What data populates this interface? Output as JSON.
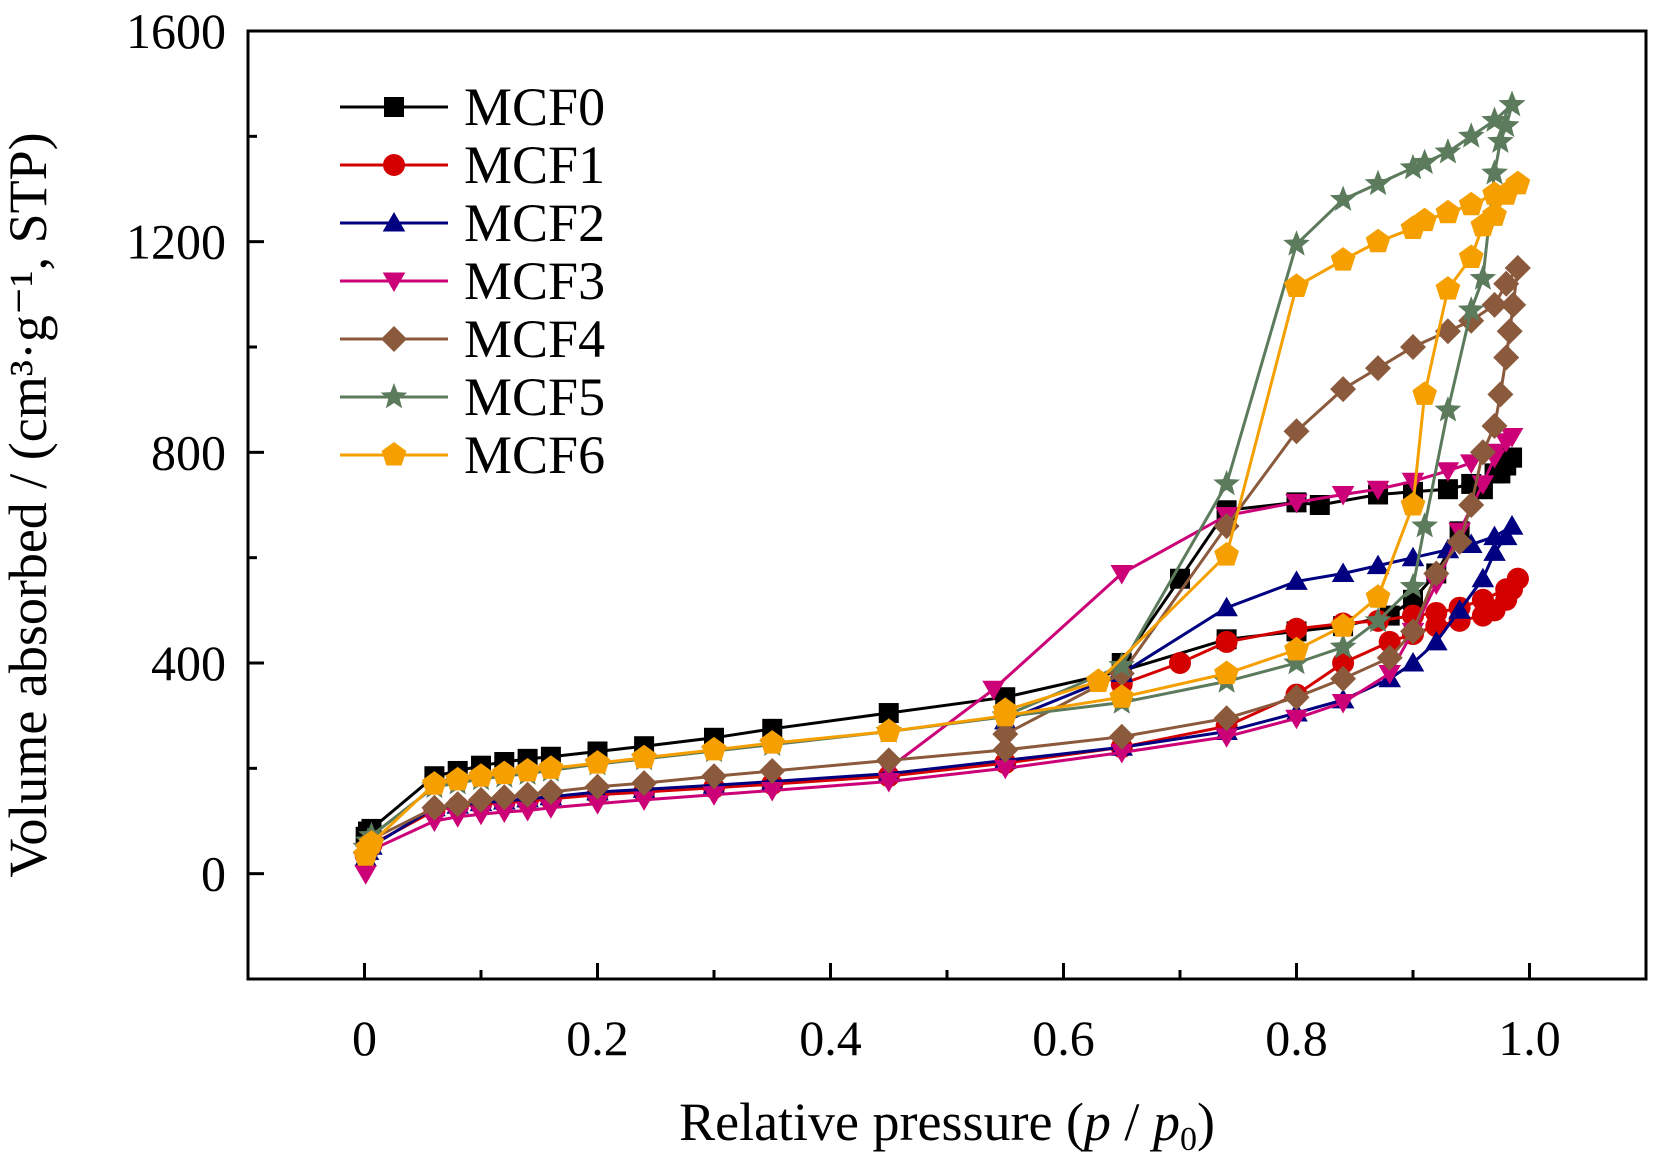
{
  "chart_data": {
    "type": "line",
    "ylabel": "Volume absorbed / (cm³·g⁻¹, STP)",
    "xlim": [
      -0.1,
      1.1
    ],
    "ylim": [
      -200,
      1600
    ],
    "xticks": [
      0,
      0.2,
      0.4,
      0.6,
      0.8,
      1.0
    ],
    "xtick_labels": [
      "0",
      "0.2",
      "0.4",
      "0.6",
      "0.8",
      "1.0"
    ],
    "yticks": [
      0,
      400,
      800,
      1200,
      1600
    ],
    "ytick_labels": [
      "0",
      "400",
      "800",
      "1200",
      "1600"
    ],
    "grid": false,
    "legend_position": "top-left",
    "xlabel_parts": {
      "text1": "Relative pressure (",
      "p": "p",
      "slash": " / ",
      "p0": "p",
      "sub0": "0",
      "close": ")"
    },
    "series": [
      {
        "name": "MCF0",
        "color": "#000000",
        "marker": "square",
        "adsorption": [
          [
            0.001,
            70
          ],
          [
            0.003,
            80
          ],
          [
            0.006,
            85
          ],
          [
            0.06,
            185
          ],
          [
            0.08,
            195
          ],
          [
            0.1,
            205
          ],
          [
            0.12,
            212
          ],
          [
            0.14,
            218
          ],
          [
            0.16,
            222
          ],
          [
            0.2,
            232
          ],
          [
            0.24,
            242
          ],
          [
            0.3,
            258
          ],
          [
            0.35,
            275
          ],
          [
            0.45,
            305
          ],
          [
            0.55,
            335
          ],
          [
            0.65,
            385
          ],
          [
            0.74,
            445
          ],
          [
            0.8,
            460
          ],
          [
            0.84,
            470
          ],
          [
            0.88,
            490
          ],
          [
            0.9,
            520
          ],
          [
            0.92,
            570
          ],
          [
            0.94,
            650
          ],
          [
            0.96,
            730
          ],
          [
            0.975,
            760
          ],
          [
            0.98,
            775
          ],
          [
            0.985,
            790
          ]
        ],
        "desorption": [
          [
            0.985,
            790
          ],
          [
            0.97,
            760
          ],
          [
            0.95,
            740
          ],
          [
            0.93,
            730
          ],
          [
            0.9,
            725
          ],
          [
            0.87,
            720
          ],
          [
            0.82,
            700
          ],
          [
            0.8,
            705
          ],
          [
            0.74,
            690
          ],
          [
            0.7,
            560
          ],
          [
            0.65,
            400
          ]
        ]
      },
      {
        "name": "MCF1",
        "color": "#d40000",
        "marker": "circle",
        "adsorption": [
          [
            0.001,
            35
          ],
          [
            0.003,
            45
          ],
          [
            0.006,
            55
          ],
          [
            0.06,
            120
          ],
          [
            0.08,
            128
          ],
          [
            0.1,
            132
          ],
          [
            0.12,
            135
          ],
          [
            0.14,
            138
          ],
          [
            0.16,
            142
          ],
          [
            0.2,
            150
          ],
          [
            0.24,
            155
          ],
          [
            0.3,
            163
          ],
          [
            0.35,
            170
          ],
          [
            0.45,
            185
          ],
          [
            0.55,
            210
          ],
          [
            0.65,
            240
          ],
          [
            0.74,
            280
          ],
          [
            0.8,
            340
          ],
          [
            0.84,
            400
          ],
          [
            0.88,
            440
          ],
          [
            0.9,
            455
          ],
          [
            0.92,
            470
          ],
          [
            0.94,
            480
          ],
          [
            0.96,
            490
          ],
          [
            0.97,
            500
          ],
          [
            0.98,
            520
          ],
          [
            0.985,
            540
          ],
          [
            0.99,
            560
          ]
        ],
        "desorption": [
          [
            0.99,
            560
          ],
          [
            0.98,
            540
          ],
          [
            0.96,
            520
          ],
          [
            0.94,
            505
          ],
          [
            0.92,
            495
          ],
          [
            0.9,
            490
          ],
          [
            0.87,
            480
          ],
          [
            0.84,
            475
          ],
          [
            0.8,
            465
          ],
          [
            0.74,
            440
          ],
          [
            0.7,
            400
          ],
          [
            0.65,
            360
          ]
        ]
      },
      {
        "name": "MCF2",
        "color": "#000080",
        "marker": "triangle-up",
        "adsorption": [
          [
            0.001,
            30
          ],
          [
            0.003,
            42
          ],
          [
            0.006,
            52
          ],
          [
            0.06,
            125
          ],
          [
            0.08,
            130
          ],
          [
            0.1,
            135
          ],
          [
            0.12,
            138
          ],
          [
            0.14,
            142
          ],
          [
            0.16,
            146
          ],
          [
            0.2,
            155
          ],
          [
            0.24,
            160
          ],
          [
            0.3,
            168
          ],
          [
            0.35,
            175
          ],
          [
            0.45,
            190
          ],
          [
            0.55,
            215
          ],
          [
            0.65,
            240
          ],
          [
            0.74,
            270
          ],
          [
            0.8,
            305
          ],
          [
            0.84,
            330
          ],
          [
            0.88,
            370
          ],
          [
            0.9,
            400
          ],
          [
            0.92,
            440
          ],
          [
            0.94,
            500
          ],
          [
            0.96,
            560
          ],
          [
            0.97,
            610
          ],
          [
            0.98,
            640
          ],
          [
            0.985,
            660
          ]
        ],
        "desorption": [
          [
            0.985,
            660
          ],
          [
            0.97,
            640
          ],
          [
            0.95,
            625
          ],
          [
            0.93,
            615
          ],
          [
            0.9,
            600
          ],
          [
            0.87,
            585
          ],
          [
            0.84,
            570
          ],
          [
            0.8,
            555
          ],
          [
            0.74,
            505
          ],
          [
            0.65,
            380
          ],
          [
            0.55,
            290
          ]
        ]
      },
      {
        "name": "MCF3",
        "color": "#cc0077",
        "marker": "triangle-down",
        "adsorption": [
          [
            0.001,
            0
          ],
          [
            0.003,
            30
          ],
          [
            0.006,
            45
          ],
          [
            0.06,
            100
          ],
          [
            0.08,
            108
          ],
          [
            0.1,
            113
          ],
          [
            0.12,
            117
          ],
          [
            0.14,
            120
          ],
          [
            0.16,
            125
          ],
          [
            0.2,
            133
          ],
          [
            0.24,
            140
          ],
          [
            0.3,
            150
          ],
          [
            0.35,
            158
          ],
          [
            0.45,
            175
          ],
          [
            0.55,
            200
          ],
          [
            0.65,
            230
          ],
          [
            0.74,
            260
          ],
          [
            0.8,
            295
          ],
          [
            0.84,
            325
          ],
          [
            0.88,
            380
          ],
          [
            0.9,
            460
          ],
          [
            0.92,
            550
          ],
          [
            0.94,
            650
          ],
          [
            0.96,
            740
          ],
          [
            0.97,
            790
          ],
          [
            0.98,
            820
          ],
          [
            0.985,
            830
          ]
        ],
        "desorption": [
          [
            0.985,
            830
          ],
          [
            0.97,
            800
          ],
          [
            0.95,
            780
          ],
          [
            0.93,
            765
          ],
          [
            0.9,
            745
          ],
          [
            0.87,
            730
          ],
          [
            0.84,
            720
          ],
          [
            0.8,
            705
          ],
          [
            0.74,
            680
          ],
          [
            0.65,
            570
          ],
          [
            0.54,
            350
          ],
          [
            0.45,
            200
          ]
        ]
      },
      {
        "name": "MCF4",
        "color": "#8b5a3c",
        "marker": "diamond",
        "adsorption": [
          [
            0.001,
            40
          ],
          [
            0.003,
            55
          ],
          [
            0.006,
            65
          ],
          [
            0.06,
            125
          ],
          [
            0.08,
            132
          ],
          [
            0.1,
            140
          ],
          [
            0.12,
            145
          ],
          [
            0.14,
            150
          ],
          [
            0.16,
            155
          ],
          [
            0.2,
            165
          ],
          [
            0.24,
            172
          ],
          [
            0.3,
            185
          ],
          [
            0.35,
            195
          ],
          [
            0.45,
            215
          ],
          [
            0.55,
            235
          ],
          [
            0.65,
            260
          ],
          [
            0.74,
            295
          ],
          [
            0.8,
            335
          ],
          [
            0.84,
            370
          ],
          [
            0.88,
            410
          ],
          [
            0.9,
            460
          ],
          [
            0.92,
            570
          ],
          [
            0.94,
            630
          ],
          [
            0.95,
            700
          ],
          [
            0.96,
            800
          ],
          [
            0.97,
            850
          ],
          [
            0.975,
            910
          ],
          [
            0.98,
            980
          ],
          [
            0.983,
            1030
          ],
          [
            0.986,
            1080
          ],
          [
            0.99,
            1150
          ]
        ],
        "desorption": [
          [
            0.99,
            1150
          ],
          [
            0.98,
            1120
          ],
          [
            0.97,
            1080
          ],
          [
            0.95,
            1050
          ],
          [
            0.93,
            1030
          ],
          [
            0.9,
            1000
          ],
          [
            0.87,
            960
          ],
          [
            0.84,
            920
          ],
          [
            0.8,
            840
          ],
          [
            0.74,
            660
          ],
          [
            0.65,
            380
          ],
          [
            0.55,
            265
          ]
        ]
      },
      {
        "name": "MCF5",
        "color": "#5c7a5c",
        "marker": "star",
        "adsorption": [
          [
            0.001,
            50
          ],
          [
            0.003,
            62
          ],
          [
            0.006,
            72
          ],
          [
            0.06,
            165
          ],
          [
            0.08,
            172
          ],
          [
            0.1,
            180
          ],
          [
            0.12,
            185
          ],
          [
            0.14,
            190
          ],
          [
            0.16,
            196
          ],
          [
            0.2,
            208
          ],
          [
            0.24,
            218
          ],
          [
            0.3,
            233
          ],
          [
            0.35,
            245
          ],
          [
            0.45,
            270
          ],
          [
            0.55,
            298
          ],
          [
            0.65,
            325
          ],
          [
            0.74,
            365
          ],
          [
            0.8,
            400
          ],
          [
            0.84,
            430
          ],
          [
            0.87,
            480
          ],
          [
            0.9,
            545
          ],
          [
            0.91,
            660
          ],
          [
            0.93,
            880
          ],
          [
            0.95,
            1070
          ],
          [
            0.96,
            1130
          ],
          [
            0.97,
            1330
          ],
          [
            0.975,
            1390
          ],
          [
            0.98,
            1420
          ],
          [
            0.985,
            1460
          ]
        ],
        "desorption": [
          [
            0.985,
            1460
          ],
          [
            0.97,
            1430
          ],
          [
            0.95,
            1400
          ],
          [
            0.93,
            1370
          ],
          [
            0.91,
            1350
          ],
          [
            0.9,
            1340
          ],
          [
            0.87,
            1310
          ],
          [
            0.84,
            1280
          ],
          [
            0.8,
            1195
          ],
          [
            0.74,
            740
          ],
          [
            0.65,
            395
          ],
          [
            0.55,
            300
          ]
        ]
      },
      {
        "name": "MCF6",
        "color": "#f5a000",
        "marker": "pentagon",
        "adsorption": [
          [
            0.001,
            35
          ],
          [
            0.003,
            48
          ],
          [
            0.006,
            58
          ],
          [
            0.06,
            170
          ],
          [
            0.08,
            178
          ],
          [
            0.1,
            185
          ],
          [
            0.12,
            190
          ],
          [
            0.14,
            195
          ],
          [
            0.16,
            200
          ],
          [
            0.2,
            210
          ],
          [
            0.24,
            220
          ],
          [
            0.3,
            235
          ],
          [
            0.35,
            248
          ],
          [
            0.45,
            270
          ],
          [
            0.55,
            300
          ],
          [
            0.65,
            335
          ],
          [
            0.74,
            380
          ],
          [
            0.8,
            425
          ],
          [
            0.84,
            470
          ],
          [
            0.87,
            525
          ],
          [
            0.9,
            700
          ],
          [
            0.91,
            910
          ],
          [
            0.93,
            1110
          ],
          [
            0.95,
            1170
          ],
          [
            0.96,
            1230
          ],
          [
            0.97,
            1250
          ],
          [
            0.98,
            1290
          ],
          [
            0.99,
            1310
          ]
        ],
        "desorption": [
          [
            0.99,
            1310
          ],
          [
            0.97,
            1290
          ],
          [
            0.95,
            1270
          ],
          [
            0.93,
            1255
          ],
          [
            0.91,
            1240
          ],
          [
            0.9,
            1225
          ],
          [
            0.87,
            1200
          ],
          [
            0.84,
            1165
          ],
          [
            0.8,
            1115
          ],
          [
            0.74,
            605
          ],
          [
            0.63,
            365
          ],
          [
            0.55,
            310
          ]
        ]
      }
    ]
  }
}
